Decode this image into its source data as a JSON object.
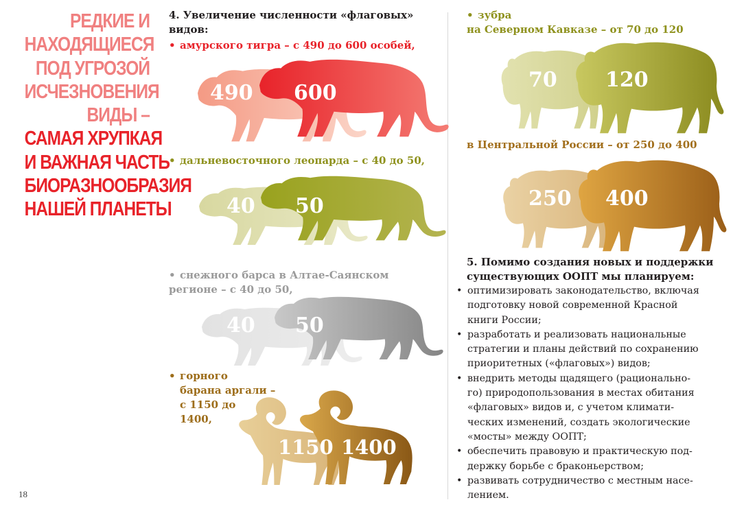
{
  "headline": {
    "line1": [
      "РЕДКИЕ И",
      "НАХОДЯЩИЕСЯ",
      "ПОД УГРОЗОЙ",
      "ИСЧЕЗНОВЕНИЯ",
      "ВИДЫ –"
    ],
    "line2": [
      "САМАЯ ХРУПКАЯ",
      "И ВАЖНАЯ ЧАСТЬ",
      "БИОРАЗНООБРАЗИЯ",
      "НАШЕЙ ПЛАНЕТЫ"
    ]
  },
  "page_number": "18",
  "section4": {
    "heading_line1": "4. Увеличение численности «флаговых»",
    "heading_line2": "видов:",
    "tiger": {
      "label": "амурского тигра – с 490 до 600 особей,",
      "from": "490",
      "to": "600"
    },
    "leopard": {
      "label": "дальневосточного  леопарда – с 40 до 50,",
      "from": "40",
      "to": "50"
    },
    "snow_leopard": {
      "label_line1": "снежного барса в Алтае-Саянском",
      "label_line2": "регионе – с 40 до 50,",
      "from": "40",
      "to": "50"
    },
    "argali": {
      "label_lines": [
        "горного",
        "барана аргали –",
        "с 1150 до",
        "1400,"
      ],
      "from": "1150",
      "to": "1400"
    }
  },
  "bison": {
    "label_line1": "зубра",
    "caucasus_label": "на Северном Кавказе – от 70 до 120",
    "caucasus_from": "70",
    "caucasus_to": "120",
    "central_label": "в Центральной России – от 250 до 400",
    "central_from": "250",
    "central_to": "400"
  },
  "section5": {
    "heading_line1": "5. Помимо создания новых и поддержки",
    "heading_line2": "существующих ООПТ мы планируем:",
    "items": [
      [
        "оптимизировать законодательство, включая",
        "подготовку новой современной Красной",
        "книги России;"
      ],
      [
        "разработать и реализовать национальные",
        "стратегии и планы действий по сохранению",
        "приоритетных («флаговых») видов;"
      ],
      [
        "внедрить методы щадящего (рационально-",
        "го) природопользования в местах обитания",
        "«флаговых» видов и, с учетом климати-",
        "ческих изменений, создать экологические",
        "«мосты» между ООПТ;"
      ],
      [
        "обеспечить правовую и практическую под-",
        "держку борьбе с браконьерством;"
      ],
      [
        "развивать сотрудничество с местным насе-",
        "лением."
      ]
    ]
  },
  "colors": {
    "headline_light": "#f08080",
    "headline_dark": "#e8232a",
    "tiger": "#e8232a",
    "leopard": "#8f921e",
    "snow_leopard": "#9b9b9b",
    "argali": "#9d6d1a",
    "bison_caucasus": "#8f921e",
    "bison_central": "#a26f1c"
  },
  "icons": [
    "tiger-silhouette",
    "leopard-silhouette",
    "snow-leopard-silhouette",
    "argali-silhouette",
    "bison-silhouette"
  ]
}
